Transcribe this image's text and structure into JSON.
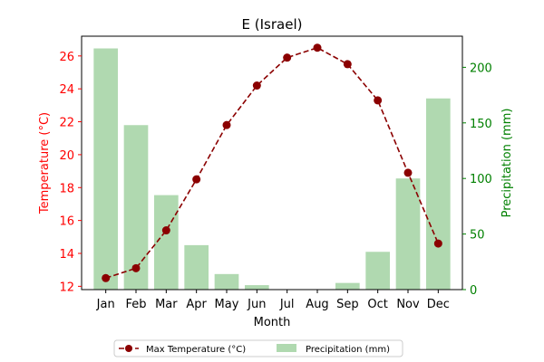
{
  "colors": {
    "temperature": "#8b0000",
    "temperature_axis": "#ff0000",
    "precipitation": "#b0d9b0",
    "precipitation_axis": "#008000"
  },
  "chart_data": {
    "type": "bar+line",
    "title": "E (Israel)",
    "xlabel": "Month",
    "ylabel_left": "Temperature (°C)",
    "ylabel_right": "Precipitation (mm)",
    "categories": [
      "Jan",
      "Feb",
      "Mar",
      "Apr",
      "May",
      "Jun",
      "Jul",
      "Aug",
      "Sep",
      "Oct",
      "Nov",
      "Dec"
    ],
    "y_left_lim": [
      11.8,
      27.2
    ],
    "y_left_ticks": [
      12,
      14,
      16,
      18,
      20,
      22,
      24,
      26
    ],
    "y_right_lim": [
      0,
      228
    ],
    "y_right_ticks": [
      0,
      50,
      100,
      150,
      200
    ],
    "grid": false,
    "legend_position": "bottom-center",
    "series": [
      {
        "name": "Max Temperature (°C)",
        "type": "line",
        "axis": "left",
        "style": "dashed-marker",
        "values": [
          12.5,
          13.1,
          15.4,
          18.5,
          21.8,
          24.2,
          25.9,
          26.5,
          25.5,
          23.3,
          18.9,
          14.6
        ]
      },
      {
        "name": "Precipitation (mm)",
        "type": "bar",
        "axis": "right",
        "values": [
          217,
          148,
          85,
          40,
          14,
          4,
          0,
          0,
          6,
          34,
          100,
          172
        ]
      }
    ]
  }
}
